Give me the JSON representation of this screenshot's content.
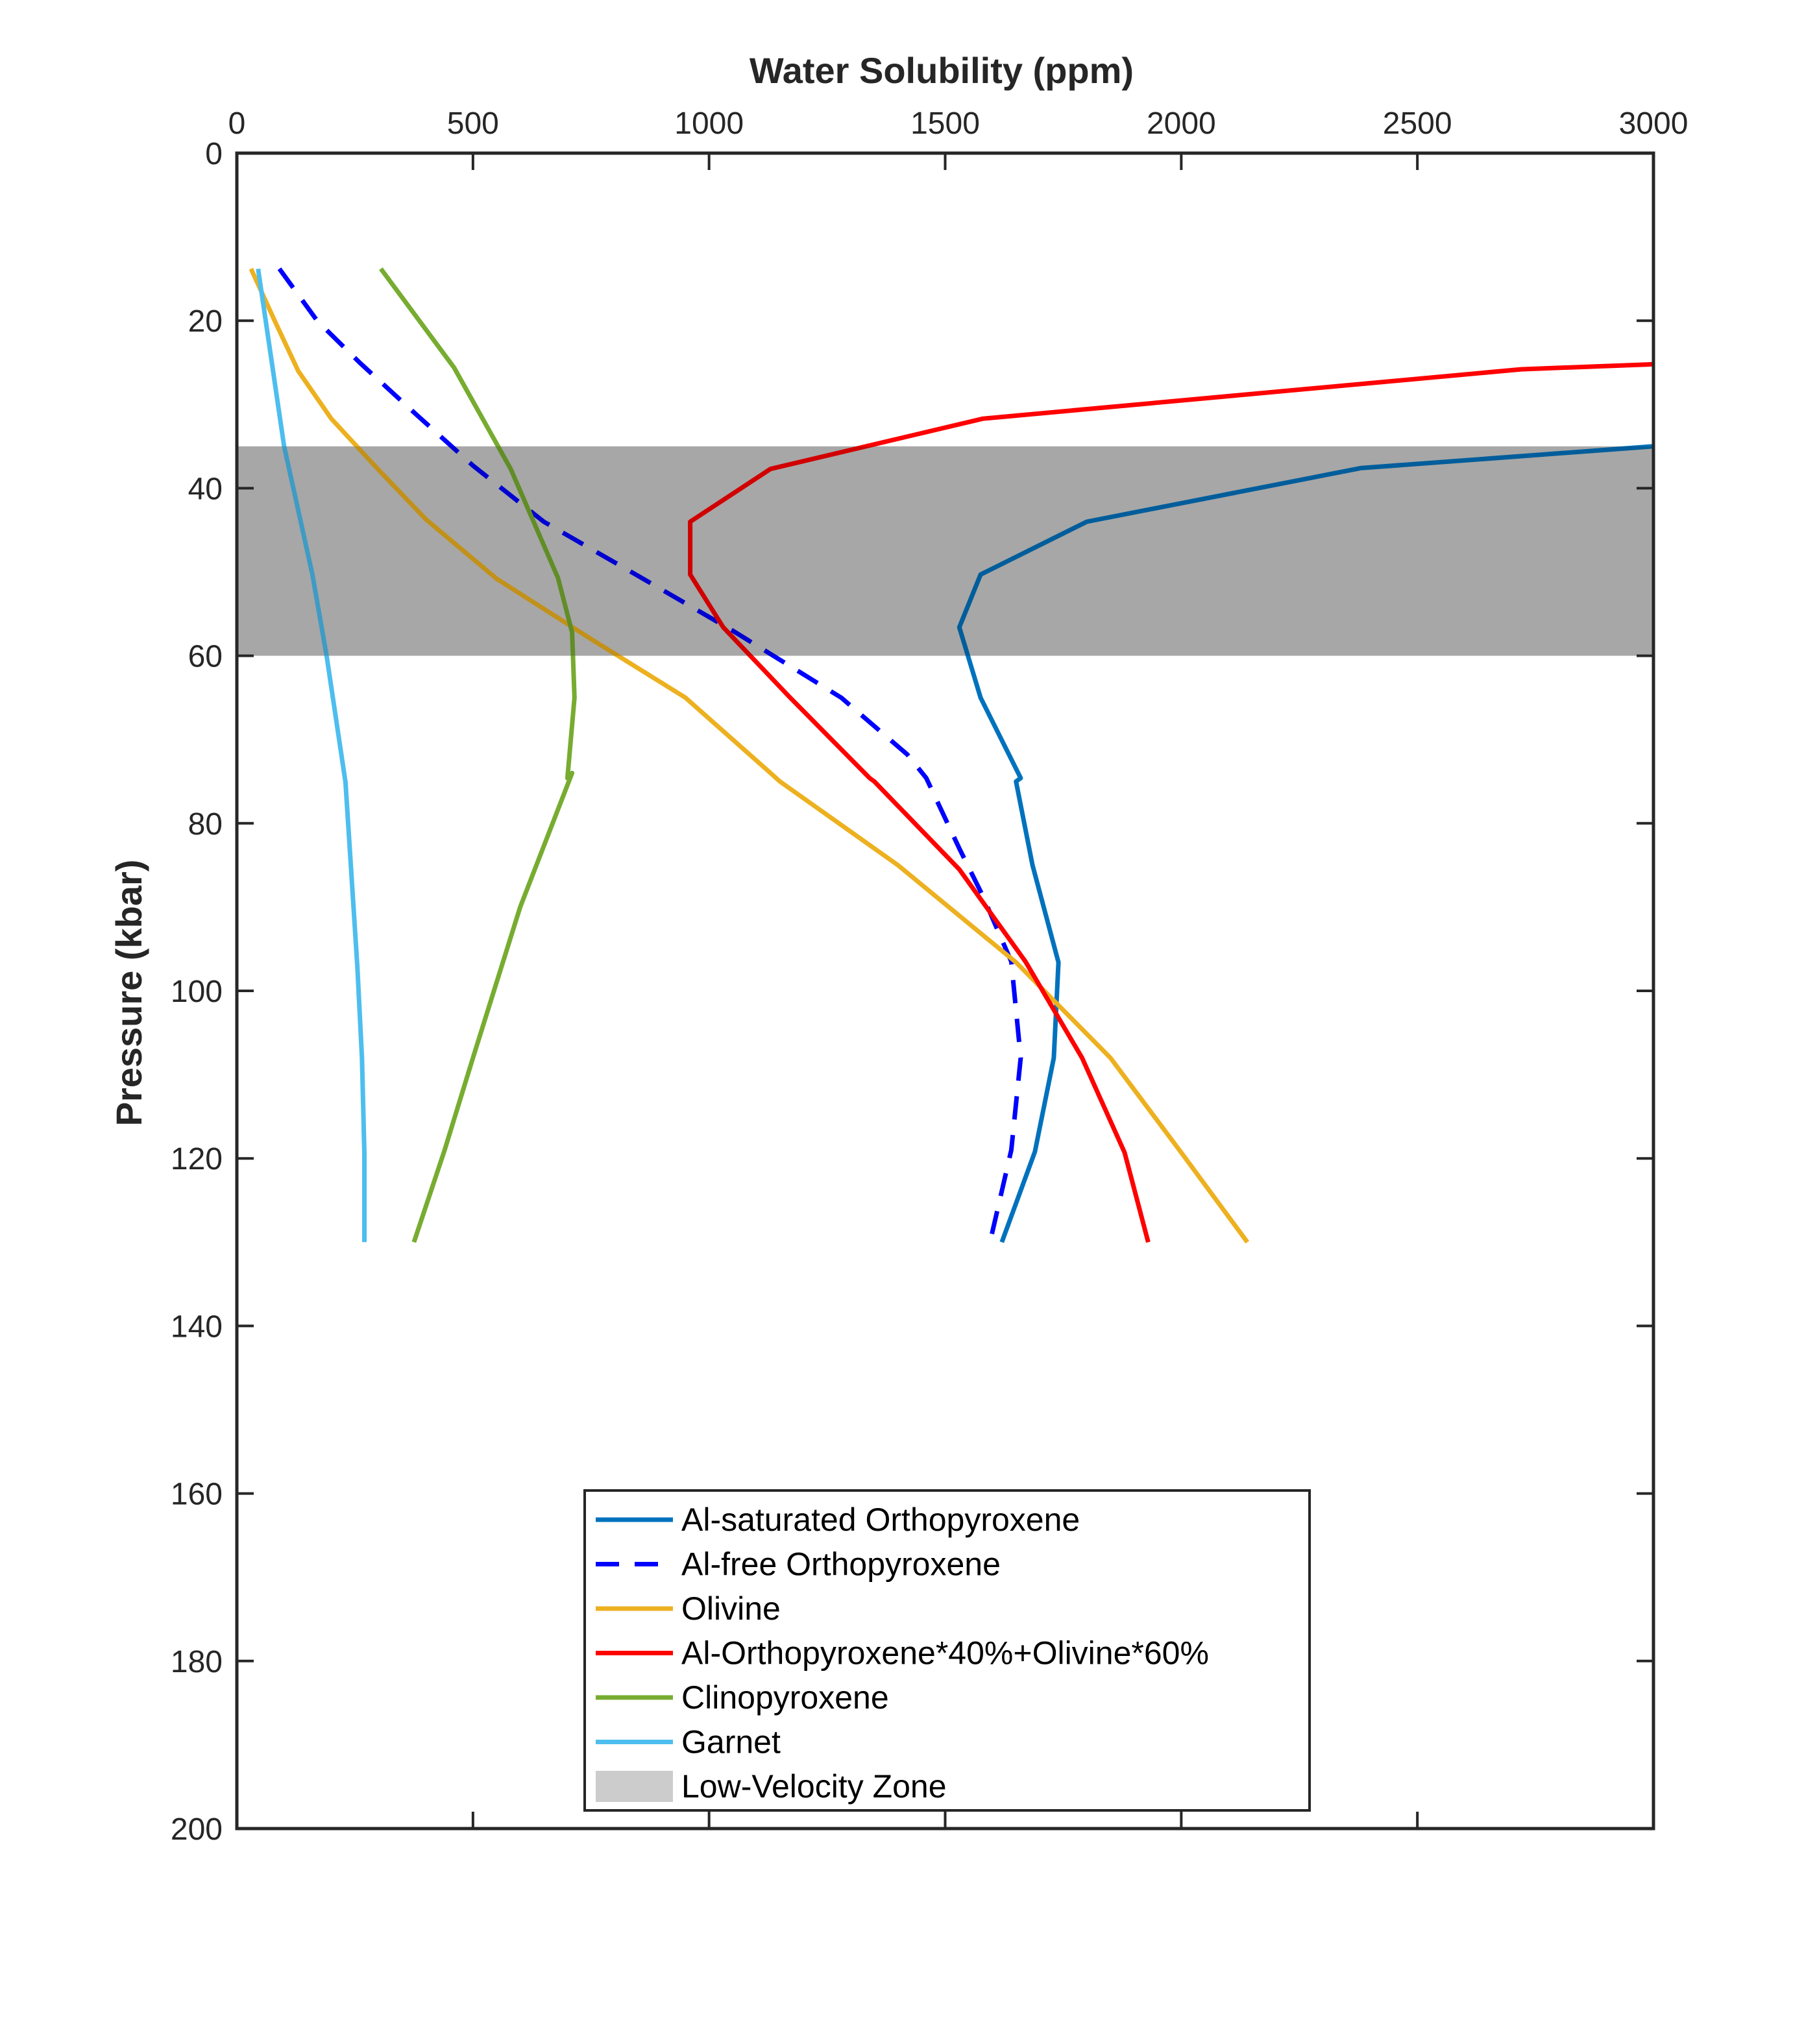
{
  "chart_data": {
    "type": "line",
    "xlabel": "Water Solubility (ppm)",
    "ylabel": "Pressure (kbar)",
    "xlim": [
      0,
      3000
    ],
    "ylim": [
      0,
      200
    ],
    "x_axis_position": "top",
    "y_axis_direction": "reversed",
    "x_ticks": [
      0,
      500,
      1000,
      1500,
      2000,
      2500,
      3000
    ],
    "y_ticks": [
      0,
      20,
      40,
      60,
      80,
      100,
      120,
      140,
      160,
      180,
      200
    ],
    "grid": false,
    "legend_position": "bottom-center",
    "shaded_regions": [
      {
        "name": "Low-Velocity Zone",
        "y_range": [
          35,
          60
        ],
        "color": "#cccccc"
      }
    ],
    "series": [
      {
        "name": "Al-saturated Orthopyroxene",
        "color": "#0072BD",
        "style": "solid",
        "points": [
          [
            3000,
            35
          ],
          [
            2380,
            37.6
          ],
          [
            1800,
            44
          ],
          [
            1575,
            50.3
          ],
          [
            1530,
            56.6
          ],
          [
            1575,
            65
          ],
          [
            1660,
            74.6
          ],
          [
            1650,
            75
          ],
          [
            1685,
            85
          ],
          [
            1740,
            96.6
          ],
          [
            1730,
            108
          ],
          [
            1690,
            119.2
          ],
          [
            1620,
            130
          ]
        ]
      },
      {
        "name": "Al-free Orthopyroxene",
        "color": "#0000FF",
        "style": "dashed",
        "points": [
          [
            90,
            13.8
          ],
          [
            170,
            20
          ],
          [
            260,
            25
          ],
          [
            380,
            31.2
          ],
          [
            500,
            37.3
          ],
          [
            650,
            44
          ],
          [
            860,
            50.8
          ],
          [
            1050,
            57
          ],
          [
            1280,
            65
          ],
          [
            1420,
            71.8
          ],
          [
            1460,
            74.6
          ],
          [
            1530,
            83
          ],
          [
            1580,
            88.7
          ],
          [
            1640,
            96.5
          ],
          [
            1660,
            108
          ],
          [
            1640,
            119
          ],
          [
            1595,
            130
          ]
        ]
      },
      {
        "name": "Olivine",
        "color": "#EDB120",
        "style": "solid",
        "points": [
          [
            30,
            13.8
          ],
          [
            80,
            20
          ],
          [
            130,
            26
          ],
          [
            200,
            31.7
          ],
          [
            300,
            37.8
          ],
          [
            400,
            43.7
          ],
          [
            550,
            50.8
          ],
          [
            750,
            58
          ],
          [
            950,
            65
          ],
          [
            1130,
            74
          ],
          [
            1150,
            75
          ],
          [
            1400,
            85
          ],
          [
            1650,
            96.6
          ],
          [
            1850,
            108
          ],
          [
            2000,
            119.3
          ],
          [
            2140,
            130
          ]
        ]
      },
      {
        "name": "Al-Orthopyroxene*40%+Olivine*60%",
        "color": "#FF0000",
        "style": "solid",
        "points": [
          [
            3000,
            25.2
          ],
          [
            2720,
            25.8
          ],
          [
            1580,
            31.7
          ],
          [
            1130,
            37.7
          ],
          [
            960,
            44
          ],
          [
            960,
            50.3
          ],
          [
            1030,
            56.6
          ],
          [
            1170,
            64.9
          ],
          [
            1340,
            74.6
          ],
          [
            1350,
            75
          ],
          [
            1530,
            85.5
          ],
          [
            1670,
            96.5
          ],
          [
            1790,
            108
          ],
          [
            1880,
            119.3
          ],
          [
            1930,
            130
          ]
        ]
      },
      {
        "name": "Clinopyroxene",
        "color": "#77AC30",
        "style": "solid",
        "points": [
          [
            305,
            13.8
          ],
          [
            460,
            25.6
          ],
          [
            580,
            37.7
          ],
          [
            680,
            50.7
          ],
          [
            710,
            57.2
          ],
          [
            715,
            65
          ],
          [
            700,
            74.6
          ],
          [
            710,
            74
          ],
          [
            600,
            90
          ],
          [
            500,
            108
          ],
          [
            440,
            119
          ],
          [
            375,
            130
          ]
        ]
      },
      {
        "name": "Garnet",
        "color": "#4DBEEE",
        "style": "solid",
        "points": [
          [
            45,
            13.8
          ],
          [
            100,
            35
          ],
          [
            160,
            50.3
          ],
          [
            190,
            60
          ],
          [
            230,
            75.1
          ],
          [
            255,
            97
          ],
          [
            265,
            108
          ],
          [
            270,
            119.4
          ],
          [
            270,
            130
          ]
        ]
      }
    ],
    "legend": [
      "Al-saturated Orthopyroxene",
      "Al-free Orthopyroxene",
      "Olivine",
      "Al-Orthopyroxene*40%+Olivine*60%",
      "Clinopyroxene",
      "Garnet",
      "Low-Velocity Zone"
    ]
  }
}
